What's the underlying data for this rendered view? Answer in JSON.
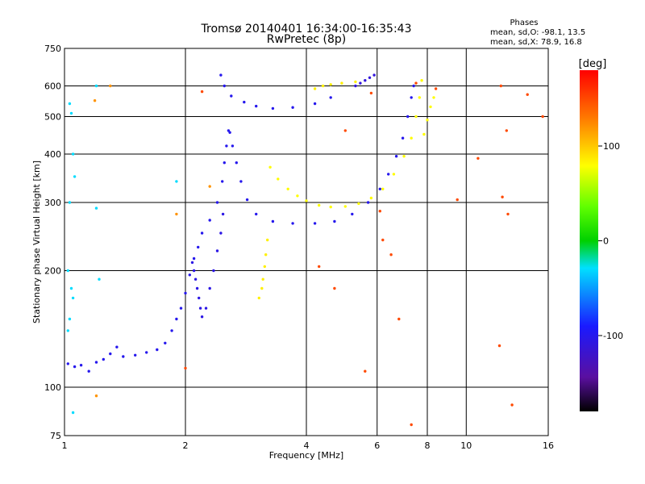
{
  "chart_data": {
    "type": "scatter",
    "title": "Tromsø 20140401 16:34:00-16:35:43",
    "subtitle": "RwPretec (8p)",
    "xlabel": "Frequency [MHz]",
    "ylabel": "Stationary phase Virtual Height [km]",
    "x_scale": "log",
    "y_scale": "log",
    "xlim": [
      1,
      16
    ],
    "ylim": [
      75,
      750
    ],
    "x_ticks": [
      1,
      2,
      4,
      6,
      8,
      10,
      16
    ],
    "x_tick_labels": [
      "1",
      "2",
      "4",
      "6",
      "8",
      "10",
      "16"
    ],
    "y_ticks": [
      75,
      100,
      200,
      300,
      400,
      500,
      600,
      750
    ],
    "y_tick_labels": [
      "75",
      "100",
      "200",
      "300",
      "400",
      "500",
      "600",
      "750"
    ],
    "grid": true,
    "info": {
      "heading": "Phases",
      "line_o": "mean, sd,O: -98.1, 13.5",
      "line_x": "mean, sd,X:  78.9, 16.8"
    },
    "colorbar": {
      "label": "[deg]",
      "range": [
        -180,
        180
      ],
      "ticks": [
        100,
        0,
        -100
      ],
      "tick_labels": [
        "100",
        "0",
        "-100"
      ]
    },
    "traces": [
      {
        "phase": -100,
        "points": [
          [
            1.02,
            115
          ],
          [
            1.06,
            113
          ],
          [
            1.1,
            114
          ],
          [
            1.15,
            110
          ],
          [
            1.2,
            116
          ],
          [
            1.25,
            118
          ],
          [
            1.3,
            122
          ],
          [
            1.35,
            127
          ],
          [
            1.4,
            120
          ],
          [
            1.5,
            121
          ],
          [
            1.6,
            123
          ],
          [
            1.7,
            125
          ],
          [
            1.78,
            130
          ],
          [
            1.85,
            140
          ],
          [
            1.9,
            150
          ],
          [
            1.95,
            160
          ],
          [
            2.0,
            175
          ],
          [
            2.05,
            195
          ],
          [
            2.1,
            215
          ],
          [
            2.15,
            230
          ],
          [
            2.2,
            250
          ],
          [
            2.3,
            270
          ],
          [
            2.4,
            300
          ],
          [
            2.47,
            340
          ],
          [
            2.5,
            380
          ],
          [
            2.53,
            420
          ],
          [
            2.56,
            460
          ]
        ]
      },
      {
        "phase": -100,
        "points": [
          [
            2.58,
            455
          ],
          [
            2.62,
            420
          ],
          [
            2.68,
            380
          ],
          [
            2.75,
            340
          ],
          [
            2.85,
            305
          ],
          [
            3.0,
            280
          ],
          [
            3.3,
            268
          ],
          [
            3.7,
            265
          ],
          [
            4.2,
            265
          ],
          [
            4.7,
            268
          ],
          [
            5.2,
            280
          ],
          [
            5.7,
            300
          ],
          [
            6.1,
            325
          ],
          [
            6.4,
            355
          ],
          [
            6.7,
            395
          ],
          [
            6.95,
            440
          ],
          [
            7.15,
            500
          ],
          [
            7.3,
            560
          ],
          [
            7.4,
            600
          ]
        ]
      },
      {
        "phase": -100,
        "points": [
          [
            2.45,
            640
          ],
          [
            2.5,
            600
          ],
          [
            2.6,
            565
          ],
          [
            2.8,
            545
          ],
          [
            3.0,
            532
          ],
          [
            3.3,
            525
          ],
          [
            3.7,
            528
          ],
          [
            4.2,
            540
          ],
          [
            4.6,
            560
          ]
        ]
      },
      {
        "phase": -110,
        "points": [
          [
            5.3,
            600
          ],
          [
            5.45,
            610
          ],
          [
            5.6,
            620
          ],
          [
            5.75,
            630
          ],
          [
            5.9,
            640
          ]
        ]
      },
      {
        "phase": -105,
        "points": [
          [
            2.08,
            210
          ],
          [
            2.1,
            200
          ],
          [
            2.12,
            190
          ],
          [
            2.14,
            180
          ],
          [
            2.16,
            170
          ],
          [
            2.18,
            160
          ],
          [
            2.2,
            152
          ],
          [
            2.25,
            160
          ],
          [
            2.3,
            180
          ],
          [
            2.35,
            200
          ],
          [
            2.4,
            225
          ],
          [
            2.45,
            250
          ],
          [
            2.48,
            280
          ]
        ]
      },
      {
        "phase": 80,
        "points": [
          [
            3.25,
            370
          ],
          [
            3.4,
            345
          ],
          [
            3.6,
            325
          ],
          [
            3.8,
            312
          ],
          [
            4.0,
            303
          ],
          [
            4.3,
            295
          ],
          [
            4.6,
            292
          ],
          [
            5.0,
            293
          ],
          [
            5.4,
            298
          ],
          [
            5.8,
            308
          ],
          [
            6.2,
            325
          ],
          [
            6.6,
            355
          ],
          [
            7.0,
            395
          ],
          [
            7.3,
            440
          ],
          [
            7.5,
            500
          ],
          [
            7.65,
            560
          ],
          [
            7.75,
            620
          ]
        ]
      },
      {
        "phase": 80,
        "points": [
          [
            7.85,
            450
          ],
          [
            8.0,
            490
          ],
          [
            8.15,
            530
          ],
          [
            8.3,
            560
          ]
        ]
      },
      {
        "phase": 85,
        "points": [
          [
            3.05,
            170
          ],
          [
            3.1,
            180
          ],
          [
            3.12,
            190
          ],
          [
            3.15,
            205
          ],
          [
            3.17,
            220
          ],
          [
            3.2,
            240
          ]
        ]
      },
      {
        "phase": 85,
        "points": [
          [
            4.2,
            590
          ],
          [
            4.4,
            600
          ],
          [
            4.6,
            605
          ],
          [
            4.9,
            610
          ],
          [
            5.3,
            615
          ]
        ]
      },
      {
        "phase": -30,
        "points": [
          [
            1.03,
            540
          ],
          [
            1.04,
            510
          ],
          [
            1.05,
            400
          ],
          [
            1.06,
            350
          ],
          [
            1.03,
            300
          ],
          [
            1.02,
            200
          ],
          [
            1.04,
            180
          ],
          [
            1.05,
            170
          ],
          [
            1.03,
            150
          ],
          [
            1.02,
            140
          ],
          [
            1.05,
            86
          ],
          [
            1.2,
            600
          ],
          [
            1.2,
            290
          ],
          [
            1.22,
            190
          ],
          [
            1.9,
            340
          ]
        ]
      },
      {
        "phase": 120,
        "points": [
          [
            1.2,
            95
          ],
          [
            1.19,
            550
          ],
          [
            1.3,
            600
          ],
          [
            1.9,
            280
          ],
          [
            2.3,
            330
          ]
        ]
      },
      {
        "phase": 150,
        "points": [
          [
            2.0,
            112
          ],
          [
            2.2,
            580
          ],
          [
            4.3,
            205
          ],
          [
            4.7,
            180
          ],
          [
            5.0,
            460
          ],
          [
            5.6,
            110
          ],
          [
            5.8,
            575
          ],
          [
            6.1,
            285
          ],
          [
            6.2,
            240
          ],
          [
            6.5,
            220
          ],
          [
            6.8,
            150
          ],
          [
            7.5,
            610
          ],
          [
            8.4,
            590
          ],
          [
            9.5,
            305
          ],
          [
            10.7,
            390
          ],
          [
            12.2,
            600
          ],
          [
            12.3,
            310
          ],
          [
            12.6,
            460
          ],
          [
            12.7,
            280
          ],
          [
            12.1,
            128
          ],
          [
            13.0,
            90
          ],
          [
            14.2,
            570
          ],
          [
            15.5,
            500
          ],
          [
            7.3,
            80
          ]
        ]
      }
    ]
  }
}
